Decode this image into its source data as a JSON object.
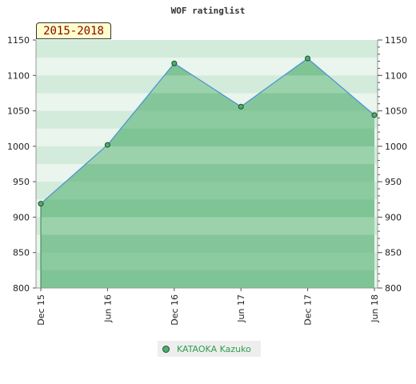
{
  "chart_data": {
    "type": "area",
    "title": "WOF ratinglist",
    "period": "2015-2018",
    "x": [
      "Dec 15",
      "Jun 16",
      "Dec 16",
      "Jun 17",
      "Dec 17",
      "Jun 18"
    ],
    "series": [
      {
        "name": "KATAOKA Kazuko",
        "values": [
          919,
          1002,
          1117,
          1056,
          1124,
          1044
        ]
      }
    ],
    "ylim": [
      800,
      1150
    ],
    "yticks": [
      800,
      850,
      900,
      950,
      1000,
      1050,
      1100,
      1150
    ],
    "grid": true,
    "legend_position": "bottom",
    "colors": {
      "line": "#4a90d9",
      "fill": "#6cbf84",
      "marker": "#4caf6a",
      "legend_text": "#2e9e4f"
    }
  }
}
